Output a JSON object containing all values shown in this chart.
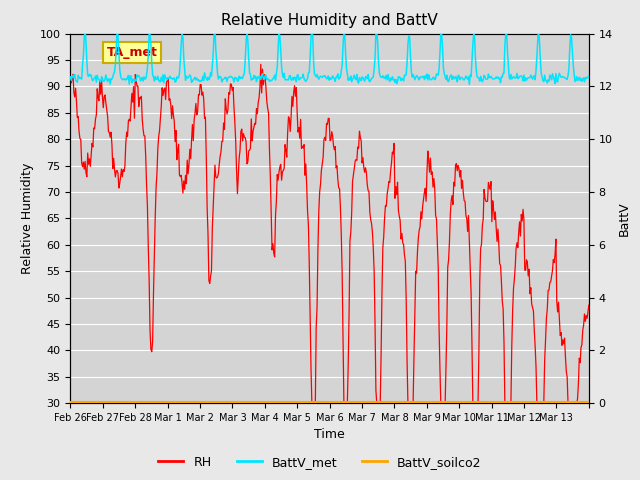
{
  "title": "Relative Humidity and BattV",
  "xlabel": "Time",
  "ylabel_left": "Relative Humidity",
  "ylabel_right": "BattV",
  "ylim_left": [
    30,
    100
  ],
  "ylim_right": [
    0,
    14
  ],
  "yticks_left": [
    30,
    35,
    40,
    45,
    50,
    55,
    60,
    65,
    70,
    75,
    80,
    85,
    90,
    95,
    100
  ],
  "yticks_right": [
    0,
    2,
    4,
    6,
    8,
    10,
    12,
    14
  ],
  "fig_bg_color": "#e8e8e8",
  "plot_bg_color": "#d4d4d4",
  "rh_color": "#ff0000",
  "battv_met_color": "#00e5ff",
  "battv_soilco2_color": "#ffa500",
  "annotation_text": "TA_met",
  "annotation_box_color": "#ffff99",
  "annotation_border_color": "#ccaa00",
  "annotation_text_color": "#cc0000",
  "legend_labels": [
    "RH",
    "BattV_met",
    "BattV_soilco2"
  ],
  "xtick_positions": [
    0,
    1,
    2,
    3,
    4,
    5,
    6,
    7,
    8,
    9,
    10,
    11,
    12,
    13,
    14,
    15,
    16
  ],
  "xtick_labels": [
    "Feb 26",
    "Feb 27",
    "Feb 28",
    "Mar 1",
    "Mar 2",
    "Mar 3",
    "Mar 4",
    "Mar 5",
    "Mar 6",
    "Mar 7",
    "Mar 8",
    "Mar 9",
    "Mar 10",
    "Mar 11",
    "Mar 12",
    "Mar 13",
    ""
  ],
  "n_points": 600,
  "xlim": [
    0,
    16
  ]
}
